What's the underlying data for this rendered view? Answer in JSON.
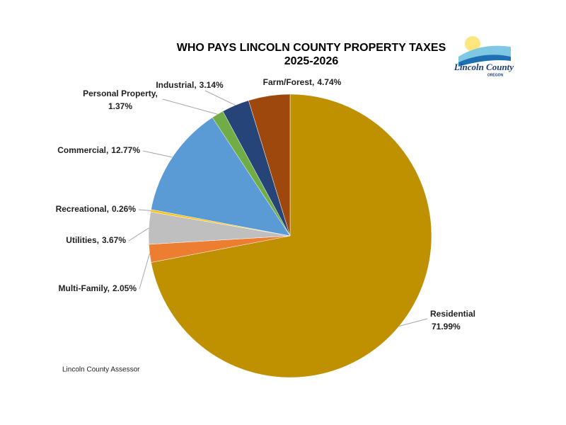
{
  "chart_data": {
    "type": "pie",
    "title": "WHO PAYS LINCOLN COUNTY PROPERTY TAXES",
    "subtitle": "2025-2026",
    "source": "Lincoln County Assessor",
    "logo": {
      "text": "Lincoln County",
      "subtext": "OREGON"
    },
    "categories": [
      "Residential",
      "Multi-Family,",
      "Utilities,",
      "Recreational,",
      "Commercial,",
      "Personal Property,",
      "Industrial,",
      "Farm/Forest,"
    ],
    "values": [
      71.99,
      2.05,
      3.67,
      0.26,
      12.77,
      1.37,
      3.14,
      4.74
    ],
    "value_labels": [
      "71.99%",
      "2.05%",
      "3.67%",
      "0.26%",
      "12.77%",
      "1.37%",
      "3.14%",
      "4.74%"
    ],
    "colors": [
      "#bf9000",
      "#ed7d31",
      "#bfbfbf",
      "#ffc000",
      "#5b9bd5",
      "#70ad47",
      "#264478",
      "#9e480e"
    ]
  }
}
